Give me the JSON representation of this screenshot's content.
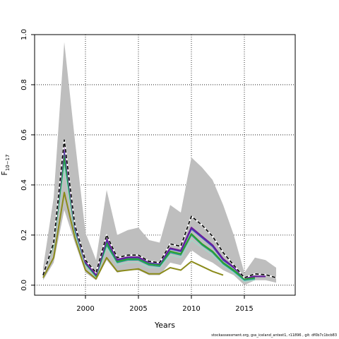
{
  "chart_data": {
    "type": "line",
    "xlabel": "Years",
    "ylabel": "F10-17",
    "ylabel_main": "F",
    "ylabel_sub": "10−17",
    "xlim": [
      1995.2,
      2019.8
    ],
    "ylim": [
      -0.04,
      1.0
    ],
    "xticks": [
      2000,
      2005,
      2010,
      2015
    ],
    "yticks": [
      0.0,
      0.2,
      0.4,
      0.6,
      0.8,
      1.0
    ],
    "ytick_labels": [
      "0.0",
      "0.2",
      "0.4",
      "0.6",
      "0.8",
      "1.0"
    ],
    "grid": true,
    "grid_style": "dotted",
    "band": {
      "color": "#bebebe",
      "years": [
        1996,
        1997,
        1998,
        1999,
        2000,
        2001,
        2002,
        2003,
        2004,
        2005,
        2006,
        2007,
        2008,
        2009,
        2010,
        2011,
        2012,
        2013,
        2014,
        2015,
        2016,
        2017,
        2018
      ],
      "upper": [
        0.07,
        0.35,
        0.97,
        0.58,
        0.21,
        0.1,
        0.38,
        0.2,
        0.22,
        0.23,
        0.18,
        0.17,
        0.32,
        0.29,
        0.51,
        0.47,
        0.42,
        0.32,
        0.2,
        0.05,
        0.11,
        0.1,
        0.07
      ],
      "lower": [
        0.02,
        0.09,
        0.3,
        0.17,
        0.05,
        0.02,
        0.1,
        0.05,
        0.06,
        0.06,
        0.04,
        0.04,
        0.09,
        0.08,
        0.14,
        0.11,
        0.09,
        0.06,
        0.04,
        0.0,
        0.02,
        0.02,
        0.01
      ]
    },
    "series": [
      {
        "color": "#9fd9c9",
        "width": 1.3,
        "dash": "",
        "x": [
          1996,
          1997,
          1998,
          1999,
          2000,
          2001,
          2002,
          2003,
          2004,
          2005,
          2006,
          2007,
          2008,
          2009,
          2010,
          2011,
          2012,
          2013,
          2014,
          2015,
          2016
        ],
        "y": [
          0.04,
          0.16,
          0.47,
          0.21,
          0.08,
          0.03,
          0.15,
          0.08,
          0.09,
          0.09,
          0.07,
          0.07,
          0.12,
          0.11,
          0.18,
          0.15,
          0.12,
          0.08,
          0.05,
          0.015,
          0.02
        ]
      },
      {
        "color": "#1f9a8a",
        "width": 1.5,
        "dash": "",
        "x": [
          1996,
          1997,
          1998,
          1999,
          2000,
          2001,
          2002,
          2003,
          2004,
          2005,
          2006,
          2007,
          2008,
          2009,
          2010,
          2011,
          2012,
          2013,
          2014,
          2015,
          2016
        ],
        "y": [
          0.04,
          0.16,
          0.5,
          0.22,
          0.085,
          0.035,
          0.16,
          0.09,
          0.1,
          0.1,
          0.08,
          0.075,
          0.13,
          0.12,
          0.2,
          0.16,
          0.13,
          0.085,
          0.055,
          0.02,
          0.025
        ]
      },
      {
        "color": "#2ca02c",
        "width": 2.0,
        "dash": "",
        "x": [
          1996,
          1997,
          1998,
          1999,
          2000,
          2001,
          2002,
          2003,
          2004,
          2005,
          2006,
          2007,
          2008,
          2009,
          2010,
          2011,
          2012,
          2013,
          2014,
          2015,
          2016
        ],
        "y": [
          0.04,
          0.165,
          0.52,
          0.225,
          0.088,
          0.037,
          0.17,
          0.095,
          0.105,
          0.105,
          0.085,
          0.08,
          0.135,
          0.125,
          0.205,
          0.165,
          0.135,
          0.09,
          0.06,
          0.025,
          0.03
        ]
      },
      {
        "color": "#3b4cc0",
        "width": 2.0,
        "dash": "",
        "x": [
          1996,
          1997,
          1998,
          1999,
          2000,
          2001,
          2002,
          2003,
          2004,
          2005,
          2006,
          2007,
          2008,
          2009,
          2010,
          2011,
          2012,
          2013,
          2014,
          2015,
          2016,
          2017
        ],
        "y": [
          0.04,
          0.17,
          0.55,
          0.23,
          0.09,
          0.04,
          0.18,
          0.1,
          0.11,
          0.11,
          0.09,
          0.085,
          0.145,
          0.135,
          0.225,
          0.19,
          0.155,
          0.1,
          0.07,
          0.03,
          0.035,
          0.035
        ]
      },
      {
        "color": "#6a1b9a",
        "width": 2.0,
        "dash": "",
        "x": [
          1996,
          1997,
          1998,
          1999,
          2000,
          2001,
          2002,
          2003,
          2004,
          2005,
          2006,
          2007,
          2008,
          2009,
          2010,
          2011,
          2012,
          2013,
          2014,
          2015,
          2016,
          2017
        ],
        "y": [
          0.04,
          0.17,
          0.56,
          0.235,
          0.092,
          0.042,
          0.185,
          0.102,
          0.112,
          0.112,
          0.092,
          0.088,
          0.148,
          0.138,
          0.23,
          0.195,
          0.16,
          0.105,
          0.072,
          0.03,
          0.035,
          0.035
        ]
      },
      {
        "color": "#8b8b1a",
        "width": 2.0,
        "dash": "",
        "x": [
          1996,
          1997,
          1998,
          1999,
          2000,
          2001,
          2002,
          2003,
          2004,
          2005,
          2006,
          2007,
          2008,
          2009,
          2010,
          2011,
          2012,
          2013
        ],
        "y": [
          0.03,
          0.11,
          0.37,
          0.19,
          0.06,
          0.025,
          0.11,
          0.055,
          0.06,
          0.065,
          0.045,
          0.045,
          0.07,
          0.06,
          0.095,
          0.075,
          0.055,
          0.04
        ]
      },
      {
        "color": "#000000",
        "width": 1.6,
        "dash": "5,3",
        "underlay": "#ffffff",
        "x": [
          1996,
          1997,
          1998,
          1999,
          2000,
          2001,
          2002,
          2003,
          2004,
          2005,
          2006,
          2007,
          2008,
          2009,
          2010,
          2011,
          2012,
          2013,
          2014,
          2015,
          2016,
          2017,
          2018
        ],
        "y": [
          0.04,
          0.17,
          0.58,
          0.24,
          0.1,
          0.05,
          0.2,
          0.11,
          0.12,
          0.12,
          0.095,
          0.09,
          0.165,
          0.155,
          0.275,
          0.24,
          0.195,
          0.13,
          0.08,
          0.03,
          0.045,
          0.042,
          0.03
        ]
      }
    ]
  },
  "footer_text": "stockassessment.org, gss_iceland_antest1, r11896 , git: df0b7c1bcb83"
}
